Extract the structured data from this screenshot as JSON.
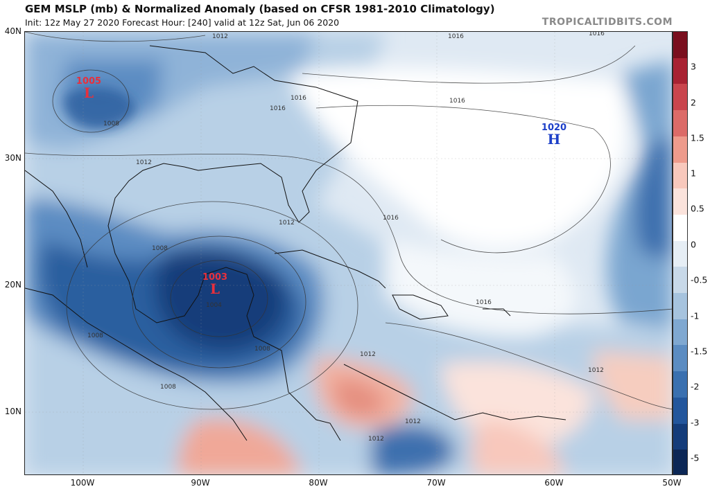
{
  "header": {
    "title": "GEM MSLP (mb) & Normalized Anomaly (based on CFSR 1981-2010 Climatology)",
    "subtitle": "Init: 12z May 27 2020   Forecast Hour: [240]   valid at 12z Sat, Jun 06 2020",
    "brand": "TROPICALTIDBITS.COM"
  },
  "axes": {
    "lat_labels": [
      "40N",
      "30N",
      "20N",
      "10N"
    ],
    "lon_labels": [
      "100W",
      "90W",
      "80W",
      "70W",
      "60W",
      "50W"
    ]
  },
  "colorbar": {
    "labels": [
      "3",
      "2",
      "1.5",
      "1",
      "0.5",
      "0",
      "-0.5",
      "-1",
      "-1.5",
      "-2",
      "-3",
      "-5"
    ],
    "colors": [
      "#7a0f1e",
      "#a82232",
      "#c9454d",
      "#dc6b68",
      "#ee9b8c",
      "#f8c8bc",
      "#fbe3dc",
      "#ffffff",
      "#e6eef5",
      "#c8d9e9",
      "#a6c3de",
      "#7fa8d1",
      "#5b8cc2",
      "#3a70b0",
      "#23569c",
      "#143c7a",
      "#0c2756"
    ]
  },
  "pressure_systems": [
    {
      "value": "1005",
      "letter": "L",
      "color": "#e8303c"
    },
    {
      "value": "1003",
      "letter": "L",
      "color": "#e8303c"
    },
    {
      "value": "1020",
      "letter": "H",
      "color": "#1c3fc8"
    }
  ],
  "contour_labels": [
    "1012",
    "1016",
    "1016",
    "1016",
    "1016",
    "1016",
    "1008",
    "1012",
    "1012",
    "1008",
    "1008",
    "1008",
    "1004",
    "1008",
    "1012",
    "1016",
    "1012",
    "1012",
    "1016",
    "1012"
  ]
}
